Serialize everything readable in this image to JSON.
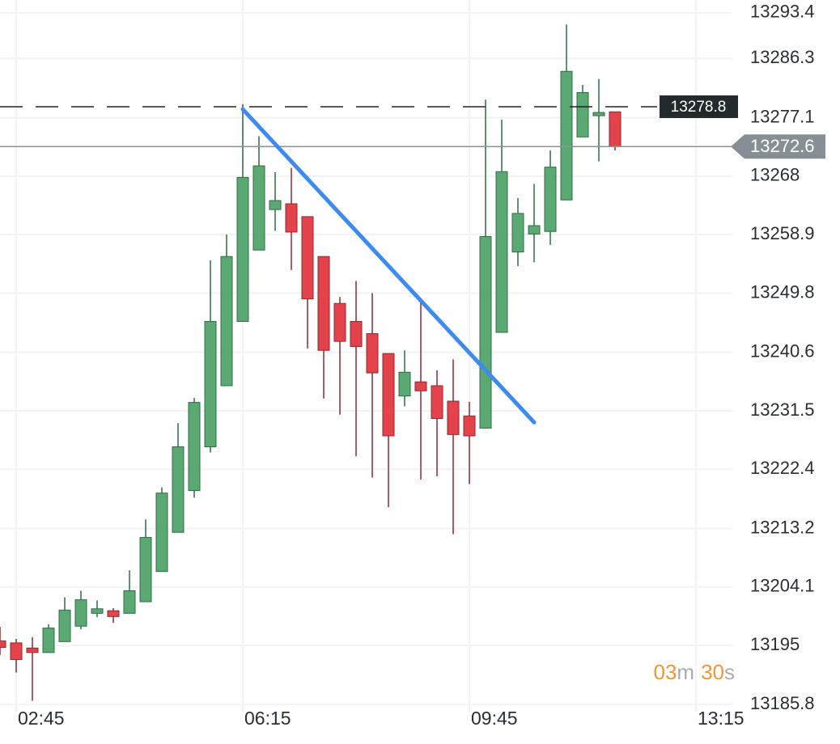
{
  "chart_data": {
    "type": "candlestick",
    "ylim": [
      13184.7,
      13295.4
    ],
    "yticks": [
      13293.4,
      13286.3,
      13277.1,
      13268.0,
      13258.9,
      13249.8,
      13240.6,
      13231.5,
      13222.4,
      13213.2,
      13204.1,
      13195.0,
      13185.8
    ],
    "xticks": [
      "02:45",
      "06:15",
      "09:45",
      "13:15"
    ],
    "grid": true,
    "up_color": "#5aa872",
    "down_color": "#e5434c",
    "open": [
      13195.7,
      13195.4,
      13194.6,
      13193.9,
      13195.6,
      13198.0,
      13200.0,
      13200.4,
      13200.0,
      13201.8,
      13206.5,
      13212.6,
      13219.1,
      13225.9,
      13235.4,
      13245.4,
      13256.5,
      13262.8,
      13263.7,
      13261.7,
      13255.5,
      13248.2,
      13245.4,
      13243.5,
      13240.4,
      13233.8,
      13236.0,
      13235.4,
      13233.0,
      13230.7,
      13228.8,
      13243.7,
      13256.2,
      13259.0,
      13259.4,
      13264.3,
      13274.1,
      13277.4,
      13278.0
    ],
    "high": [
      13197.9,
      13196.0,
      13196.3,
      13198.3,
      13202.5,
      13203.5,
      13202.0,
      13200.8,
      13206.7,
      13214.6,
      13219.6,
      13229.6,
      13233.5,
      13254.9,
      13258.9,
      13279.2,
      13274.2,
      13268.6,
      13269.3,
      13261.7,
      13255.5,
      13249.2,
      13251.7,
      13249.8,
      13240.4,
      13240.9,
      13248.6,
      13237.8,
      13239.5,
      13232.9,
      13279.9,
      13276.8,
      13264.6,
      13266.8,
      13272.0,
      13291.6,
      13282.2,
      13283.1,
      13278.0
    ],
    "low": [
      13193.5,
      13190.8,
      13186.4,
      13193.9,
      13195.6,
      13197.5,
      13199.4,
      13198.5,
      13200.0,
      13201.8,
      13206.5,
      13212.6,
      13218.0,
      13225.0,
      13235.4,
      13245.4,
      13256.5,
      13259.5,
      13253.4,
      13241.2,
      13233.4,
      13230.9,
      13224.4,
      13221.1,
      13216.5,
      13232.2,
      13220.8,
      13221.3,
      13212.3,
      13220.1,
      13228.8,
      13243.7,
      13254.0,
      13254.6,
      13257.3,
      13264.3,
      13274.1,
      13270.3,
      13272.0
    ],
    "close": [
      13194.7,
      13192.8,
      13193.9,
      13197.7,
      13200.5,
      13202.1,
      13200.7,
      13199.5,
      13203.5,
      13211.8,
      13218.7,
      13225.9,
      13232.8,
      13245.4,
      13255.5,
      13267.8,
      13269.6,
      13264.2,
      13259.3,
      13248.9,
      13240.9,
      13242.3,
      13241.5,
      13237.4,
      13227.6,
      13237.5,
      13234.6,
      13230.3,
      13227.8,
      13227.6,
      13258.6,
      13268.7,
      13262.2,
      13260.3,
      13269.4,
      13284.3,
      13281.0,
      13277.9,
      13272.6
    ],
    "reference_line": {
      "value": 13278.8,
      "label": "13278.8"
    },
    "last_price": {
      "value": 13272.6,
      "label": "13272.6"
    },
    "trendline": {
      "start": [
        15,
        13278.4
      ],
      "end": [
        33,
        13229.7
      ],
      "color": "#3d8bf0"
    },
    "countdown": {
      "minutes": "03",
      "minutes_unit": "m",
      "seconds": "30",
      "seconds_unit": "s"
    }
  }
}
